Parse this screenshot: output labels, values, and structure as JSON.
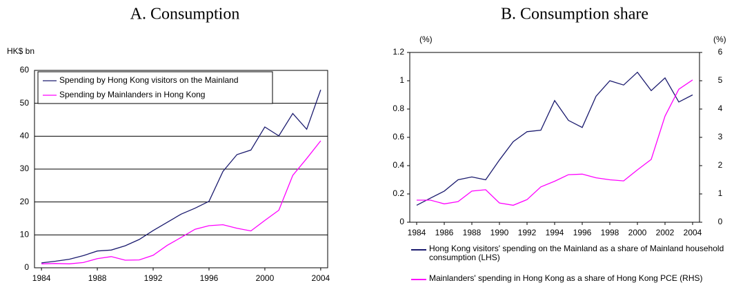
{
  "chart_data": [
    {
      "type": "line",
      "title": "A. Consumption",
      "ylabel": "HK$ bn",
      "x": [
        1984,
        1985,
        1986,
        1987,
        1988,
        1989,
        1990,
        1991,
        1992,
        1993,
        1994,
        1995,
        1996,
        1997,
        1998,
        1999,
        2000,
        2001,
        2002,
        2003,
        2004
      ],
      "series": [
        {
          "name": "Spending by Hong Kong visitors on the Mainland",
          "color": "#1a1a6e",
          "values": [
            1.5,
            2,
            2.6,
            3.7,
            5.1,
            5.4,
            6.7,
            8.6,
            11.3,
            13.8,
            16.3,
            18.1,
            20.2,
            29.3,
            34.4,
            35.8,
            42.8,
            40.1,
            46.9,
            42.1,
            54.1
          ]
        },
        {
          "name": "Spending by Mainlanders in Hong Kong",
          "color": "#ff00ff",
          "values": [
            1.2,
            1.3,
            1.2,
            1.6,
            2.8,
            3.4,
            2.3,
            2.4,
            3.8,
            6.8,
            9.2,
            11.7,
            12.8,
            13.1,
            12.0,
            11.2,
            14.4,
            17.5,
            28.1,
            33.2,
            38.6
          ]
        }
      ],
      "xlim": [
        1983.5,
        2004.5
      ],
      "xticks": [
        1984,
        1988,
        1992,
        1996,
        2000,
        2004
      ],
      "ylim": [
        0,
        60
      ],
      "yticks": [
        0,
        10,
        20,
        30,
        40,
        50,
        60
      ],
      "grid": true,
      "legend": "upper left"
    },
    {
      "type": "line",
      "title": "B. Consumption share",
      "ylabel": "(%)",
      "y2label": "(%)",
      "x": [
        1984,
        1985,
        1986,
        1987,
        1988,
        1989,
        1990,
        1991,
        1992,
        1993,
        1994,
        1995,
        1996,
        1997,
        1998,
        1999,
        2000,
        2001,
        2002,
        2003,
        2004
      ],
      "series": [
        {
          "name": "Hong Kong visitors' spending on the Mainland as a share of Mainland household consumption (LHS)",
          "color": "#1a1a6e",
          "values": [
            0.12,
            0.17,
            0.22,
            0.3,
            0.32,
            0.3,
            0.44,
            0.57,
            0.64,
            0.65,
            0.86,
            0.72,
            0.67,
            0.89,
            1.0,
            0.97,
            1.06,
            0.93,
            1.02,
            0.85,
            0.9
          ]
        },
        {
          "name": "Mainlanders' spending in Hong Kong as a share of Hong Kong PCE (RHS)",
          "color": "#ff00ff",
          "axis": "y2",
          "values": [
            0.78,
            0.78,
            0.65,
            0.73,
            1.1,
            1.15,
            0.68,
            0.6,
            0.8,
            1.25,
            1.45,
            1.68,
            1.7,
            1.57,
            1.5,
            1.46,
            1.85,
            2.22,
            3.75,
            4.7,
            5.03
          ]
        }
      ],
      "xlim": [
        1983.5,
        2004.5
      ],
      "xticks": [
        1984,
        1986,
        1988,
        1990,
        1992,
        1994,
        1996,
        1998,
        2000,
        2002,
        2004
      ],
      "ylim": [
        0,
        1.2
      ],
      "yticks": [
        0,
        0.2,
        0.4,
        0.6,
        0.8,
        1,
        1.2
      ],
      "y2lim": [
        0,
        6
      ],
      "y2ticks": [
        0,
        1,
        2,
        3,
        4,
        5,
        6
      ],
      "grid": false,
      "legend": "below"
    }
  ]
}
